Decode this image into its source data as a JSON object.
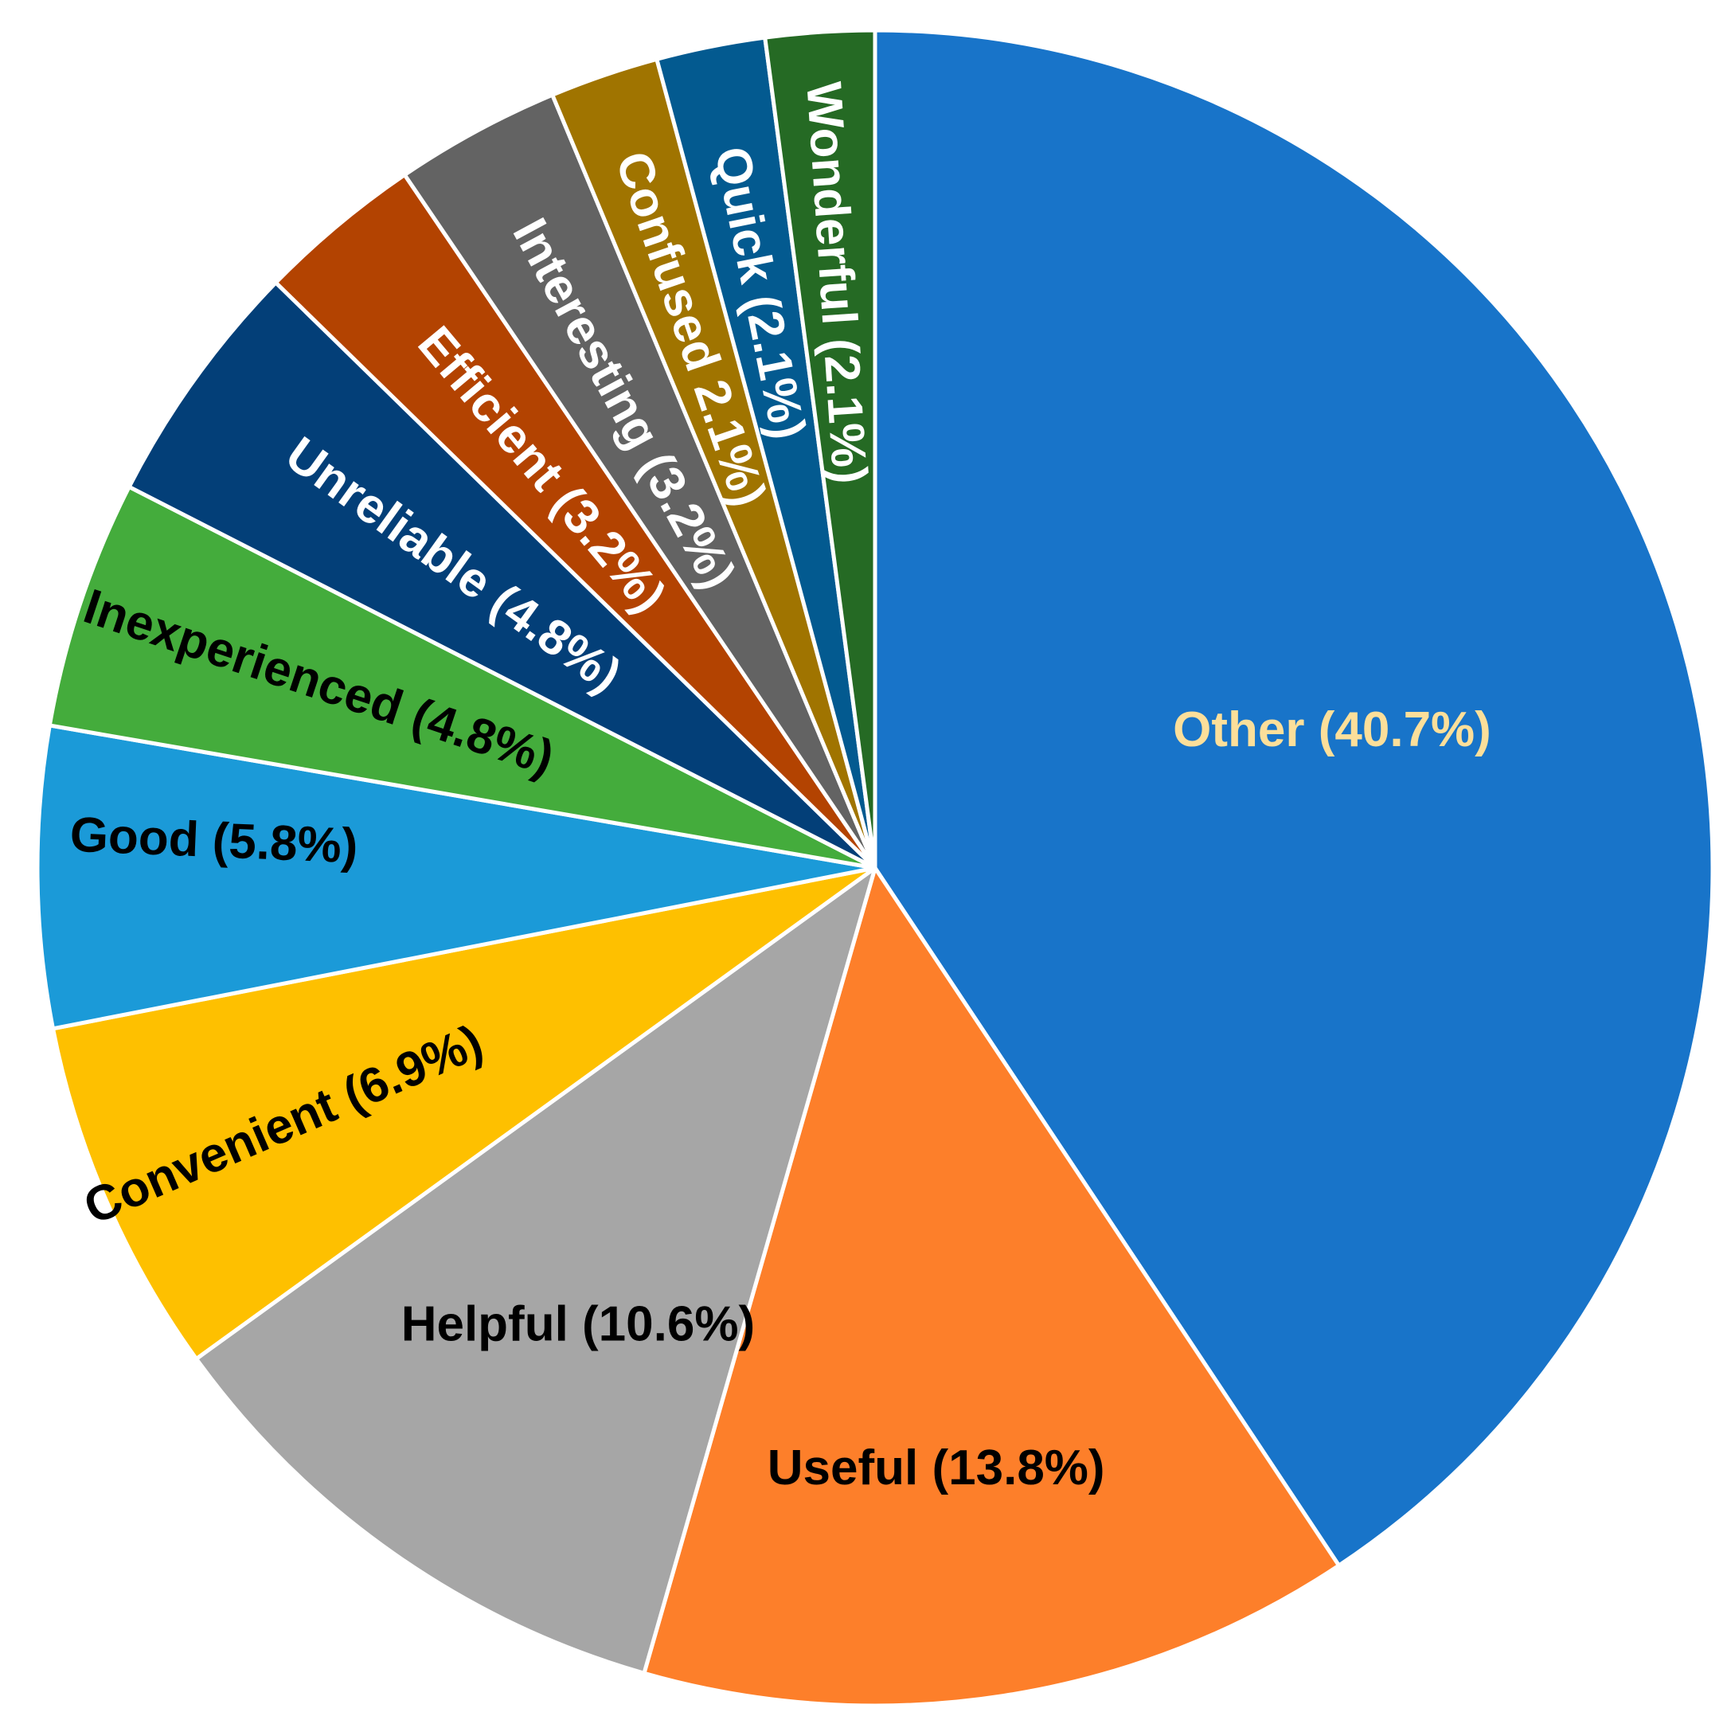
{
  "chart_data": {
    "type": "pie",
    "title": "",
    "start": "12 o'clock",
    "direction": "clockwise",
    "legend": "none (labels inside slices)",
    "slices": [
      {
        "key": "other",
        "label": "Other (40.7%)",
        "value": 40.7,
        "color": "#1874c9",
        "text_color": "#fcdf9a",
        "label_style": "horizontal"
      },
      {
        "key": "useful",
        "label": "Useful (13.8%)",
        "value": 13.8,
        "color": "#fd7f2a",
        "text_color": "#000000",
        "label_style": "horizontal"
      },
      {
        "key": "helpful",
        "label": "Helpful (10.6%)",
        "value": 10.6,
        "color": "#a6a6a6",
        "text_color": "#000000",
        "label_style": "horizontal"
      },
      {
        "key": "convenient",
        "label": "Convenient (6.9%)",
        "value": 6.9,
        "color": "#fec000",
        "text_color": "#000000",
        "label_style": "radial"
      },
      {
        "key": "good",
        "label": "Good (5.8%)",
        "value": 5.8,
        "color": "#1b9ad8",
        "text_color": "#000000",
        "label_style": "radial"
      },
      {
        "key": "inexperienced",
        "label": "Inexperienced (4.8%)",
        "value": 4.8,
        "color": "#44ac3c",
        "text_color": "#000000",
        "label_style": "radial"
      },
      {
        "key": "unreliable",
        "label": "Unreliable (4.8%)",
        "value": 4.8,
        "color": "#033f78",
        "text_color": "#ffffff",
        "label_style": "radial"
      },
      {
        "key": "efficient",
        "label": "Efficient (3.2%)",
        "value": 3.2,
        "color": "#b34301",
        "text_color": "#ffffff",
        "label_style": "radial"
      },
      {
        "key": "interesting",
        "label": "Interesting (3.2%)",
        "value": 3.2,
        "color": "#636363",
        "text_color": "#ffffff",
        "label_style": "radial"
      },
      {
        "key": "confused",
        "label": "Confused 2.1%)",
        "value": 2.1,
        "color": "#a07400",
        "text_color": "#ffffff",
        "label_style": "radial"
      },
      {
        "key": "quick",
        "label": "Quick  (2.1%)",
        "value": 2.1,
        "color": "#035a90",
        "text_color": "#ffffff",
        "label_style": "radial"
      },
      {
        "key": "wonderful",
        "label": "Wonderful (2.1%)",
        "value": 2.1,
        "color": "#256a24",
        "text_color": "#ffffff",
        "label_style": "radial"
      }
    ]
  }
}
